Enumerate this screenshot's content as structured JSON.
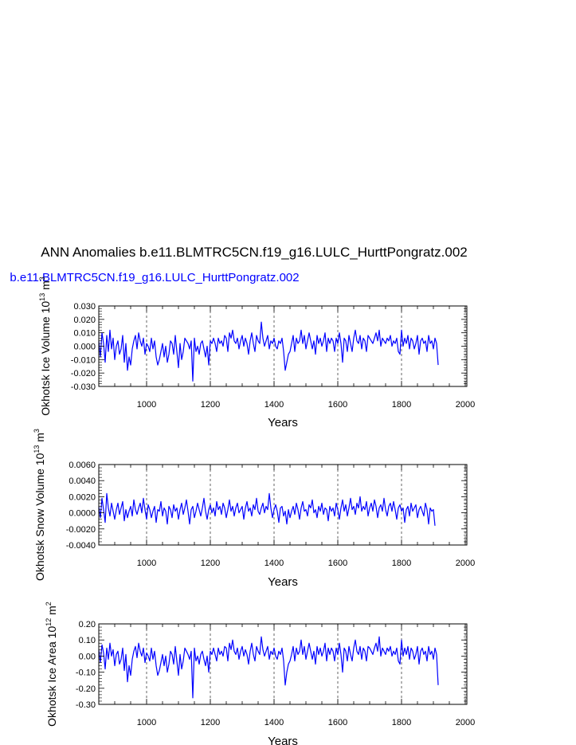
{
  "title": "ANN Anomalies b.e11.BLMTRC5CN.f19_g16.LULC_HurttPongratz.002",
  "subtitle": "b.e11.BLMTRC5CN.f19_g16.LULC_HurttPongratz.002",
  "colors": {
    "series": "#0000ff",
    "axes": "#000000",
    "subtitle": "#0000ff"
  },
  "chart_data": [
    {
      "type": "line",
      "xlabel": "Years",
      "ylabel": {
        "text": "Okhotsk Ice Volume 10",
        "exp": "13",
        "unit": " m",
        "unit_exp": "3"
      },
      "xlim": [
        850,
        2005
      ],
      "ylim": [
        -0.03,
        0.03
      ],
      "xticks": [
        1000,
        1200,
        1400,
        1600,
        1800,
        2000
      ],
      "yticks": [
        "0.030",
        "0.020",
        "0.010",
        "0.000",
        "-0.010",
        "-0.020",
        "-0.030"
      ],
      "ytick_values": [
        0.03,
        0.02,
        0.01,
        0.0,
        -0.01,
        -0.02,
        -0.03
      ],
      "vlines": [
        1000,
        1200,
        1400,
        1600,
        1800,
        2000
      ],
      "series": [
        {
          "color": "#0000ff",
          "x_start": 850,
          "x_step": 5,
          "y": [
            0.004,
            -0.008,
            0.01,
            0.002,
            -0.012,
            0.008,
            -0.004,
            0.012,
            -0.002,
            0.006,
            -0.01,
            0.0,
            0.004,
            -0.006,
            -0.002,
            0.008,
            -0.012,
            0.002,
            -0.018,
            -0.008,
            -0.014,
            -0.002,
            0.004,
            0.008,
            -0.002,
            0.01,
            0.004,
            0.0,
            0.006,
            -0.006,
            0.002,
            0.0,
            -0.004,
            0.006,
            -0.002,
            0.004,
            -0.008,
            -0.014,
            -0.01,
            -0.004,
            0.002,
            -0.008,
            0.0,
            -0.012,
            -0.006,
            0.004,
            0.002,
            -0.006,
            0.008,
            -0.004,
            -0.016,
            0.002,
            -0.01,
            -0.004,
            0.006,
            0.004,
            0.002,
            -0.002,
            0.004,
            -0.026,
            0.006,
            -0.004,
            0.0,
            -0.006,
            0.002,
            0.004,
            -0.002,
            -0.008,
            0.0,
            -0.014,
            0.004,
            0.002,
            0.006,
            0.002,
            -0.004,
            0.006,
            0.002,
            0.004,
            0.0,
            0.008,
            0.006,
            -0.004,
            0.01,
            0.006,
            0.012,
            0.004,
            0.002,
            0.006,
            -0.002,
            0.004,
            0.008,
            0.0,
            0.006,
            0.002,
            -0.006,
            0.004,
            0.01,
            0.002,
            -0.004,
            0.008,
            0.004,
            0.002,
            0.018,
            0.006,
            0.0,
            0.004,
            0.008,
            -0.002,
            0.004,
            0.002,
            0.006,
            0.0,
            -0.002,
            0.004,
            0.002,
            0.006,
            -0.004,
            -0.018,
            -0.012,
            -0.006,
            -0.004,
            0.002,
            0.008,
            -0.004,
            0.006,
            0.002,
            0.004,
            0.012,
            0.002,
            0.008,
            -0.002,
            0.004,
            0.01,
            0.004,
            -0.002,
            0.004,
            -0.006,
            0.008,
            0.002,
            0.006,
            0.0,
            0.004,
            0.01,
            -0.004,
            0.006,
            0.002,
            0.006,
            0.004,
            -0.004,
            0.006,
            0.002,
            0.01,
            0.002,
            -0.012,
            0.006,
            0.004,
            -0.004,
            0.008,
            0.002,
            -0.004,
            0.006,
            0.012,
            0.004,
            0.002,
            0.008,
            -0.002,
            0.006,
            0.004,
            -0.004,
            0.008,
            0.006,
            0.004,
            0.002,
            0.006,
            0.01,
            0.004,
            0.012,
            0.0,
            0.006,
            0.004,
            0.002,
            0.006,
            0.004,
            0.008,
            0.0,
            0.004,
            0.002,
            0.006,
            -0.004,
            -0.006,
            0.012,
            0.0,
            0.006,
            0.002,
            0.008,
            -0.002,
            0.006,
            0.004,
            -0.002,
            0.002,
            0.008,
            -0.006,
            0.004,
            0.006,
            0.002,
            0.004,
            -0.004,
            0.008,
            0.002,
            0.004,
            -0.002,
            0.006,
            0.002,
            -0.014
          ]
        }
      ]
    },
    {
      "type": "line",
      "xlabel": "Years",
      "ylabel": {
        "text": "Okhotsk Snow Volume 10",
        "exp": "13",
        "unit": " m",
        "unit_exp": "3"
      },
      "xlim": [
        850,
        2005
      ],
      "ylim": [
        -0.004,
        0.006
      ],
      "xticks": [
        1000,
        1200,
        1400,
        1600,
        1800,
        2000
      ],
      "yticks": [
        "0.0060",
        "0.0040",
        "0.0020",
        "0.0000",
        "-0.0020",
        "-0.0040"
      ],
      "ytick_values": [
        0.006,
        0.004,
        0.002,
        0.0,
        -0.002,
        -0.004
      ],
      "vlines": [
        1000,
        1200,
        1400,
        1600,
        1800,
        2000
      ],
      "series": [
        {
          "color": "#0000ff",
          "x_start": 850,
          "x_step": 5,
          "y": [
            0.0008,
            -0.0006,
            0.0018,
            0.0004,
            -0.0012,
            0.0024,
            0.0006,
            -0.0004,
            0.0012,
            0.0002,
            -0.0008,
            0.0004,
            0.0012,
            -0.0002,
            0.0006,
            0.0014,
            -0.001,
            0.0004,
            -0.0006,
            0.0002,
            0.0008,
            -0.0004,
            0.0016,
            0.0004,
            -0.0002,
            0.0006,
            0.0012,
            0.0,
            0.0018,
            0.0004,
            -0.0008,
            0.001,
            0.0004,
            -0.0006,
            0.0002,
            0.0008,
            -0.0012,
            0.0004,
            0.0002,
            0.0014,
            -0.0004,
            0.0006,
            0.0002,
            -0.0014,
            0.0008,
            0.0004,
            -0.0006,
            0.001,
            0.0002,
            0.0006,
            -0.0008,
            0.0004,
            0.0012,
            -0.0002,
            0.0006,
            0.0016,
            0.0002,
            -0.0014,
            0.0004,
            0.0008,
            -0.0006,
            0.0002,
            0.0012,
            0.0004,
            -0.0004,
            0.0006,
            0.0018,
            0.0002,
            -0.0008,
            0.0004,
            0.001,
            0.0,
            0.0006,
            -0.0004,
            0.0014,
            0.0004,
            0.0008,
            -0.0002,
            0.0012,
            0.0006,
            -0.0006,
            0.0004,
            0.0016,
            0.0002,
            0.0008,
            -0.0004,
            0.0006,
            0.0012,
            0.0,
            0.0004,
            0.0008,
            -0.0008,
            0.0006,
            0.0014,
            0.0002,
            0.0006,
            -0.0004,
            0.001,
            0.0004,
            0.0018,
            0.0002,
            -0.0002,
            0.0006,
            0.0012,
            0.0,
            0.0008,
            0.0004,
            0.0024,
            0.0006,
            -0.0006,
            0.0004,
            0.001,
            0.0002,
            -0.0012,
            0.0006,
            0.0008,
            -0.0004,
            0.0002,
            -0.0014,
            0.0004,
            -0.0006,
            0.0002,
            0.0008,
            -0.0002,
            0.0012,
            0.0004,
            -0.0008,
            0.0006,
            0.0014,
            0.0002,
            0.0004,
            -0.0004,
            0.001,
            0.0006,
            0.0016,
            0.0,
            0.0004,
            -0.0006,
            0.0008,
            0.0002,
            0.0012,
            -0.0002,
            0.0006,
            0.0004,
            -0.001,
            0.0008,
            0.0002,
            0.0006,
            -0.0004,
            0.0012,
            0.0004,
            -0.0008,
            0.0006,
            0.0016,
            0.0002,
            0.001,
            -0.0004,
            0.0006,
            0.0018,
            0.0004,
            0.0008,
            -0.0002,
            0.0012,
            0.0006,
            0.002,
            0.0002,
            0.0008,
            0.0004,
            0.0014,
            -0.0004,
            0.0006,
            0.0012,
            0.0002,
            0.0016,
            0.0008,
            -0.0006,
            0.0006,
            0.001,
            0.0002,
            0.0018,
            0.0004,
            -0.0004,
            0.0008,
            0.0012,
            0.0002,
            0.0014,
            0.0004,
            -0.0008,
            0.0006,
            0.001,
            0.0002,
            0.0006,
            -0.0012,
            0.0004,
            0.0008,
            -0.0004,
            0.0012,
            0.0002,
            0.0006,
            0.001,
            -0.0006,
            0.0004,
            0.0008,
            0.0002,
            -0.0004,
            0.0012,
            0.0004,
            -0.0014,
            0.0006,
            0.0002,
            0.0004,
            -0.0016
          ]
        }
      ]
    },
    {
      "type": "line",
      "xlabel": "Years",
      "ylabel": {
        "text": "Okhotsk Ice Area 10",
        "exp": "12",
        "unit": " m",
        "unit_exp": "2"
      },
      "xlim": [
        850,
        2005
      ],
      "ylim": [
        -0.3,
        0.2
      ],
      "xticks": [
        1000,
        1200,
        1400,
        1600,
        1800,
        2000
      ],
      "yticks": [
        "0.20",
        "0.10",
        "0.00",
        "-0.10",
        "-0.20",
        "-0.30"
      ],
      "ytick_values": [
        0.2,
        0.1,
        0.0,
        -0.1,
        -0.2,
        -0.3
      ],
      "vlines": [
        1000,
        1200,
        1400,
        1600,
        1800,
        2000
      ],
      "series": [
        {
          "color": "#0000ff",
          "x_start": 850,
          "x_step": 5,
          "y": [
            0.04,
            -0.04,
            0.07,
            0.02,
            -0.08,
            0.05,
            -0.02,
            0.08,
            0.0,
            0.04,
            -0.06,
            0.01,
            0.03,
            -0.05,
            -0.02,
            0.05,
            -0.09,
            0.01,
            -0.16,
            -0.06,
            -0.12,
            -0.02,
            0.03,
            0.06,
            -0.01,
            0.08,
            0.03,
            0.0,
            0.05,
            -0.04,
            0.02,
            0.0,
            -0.03,
            0.05,
            -0.02,
            0.03,
            -0.06,
            -0.12,
            -0.09,
            -0.04,
            0.01,
            -0.06,
            0.0,
            -0.1,
            -0.05,
            0.03,
            0.01,
            -0.05,
            0.06,
            -0.03,
            -0.12,
            0.01,
            -0.08,
            -0.03,
            0.05,
            0.03,
            0.01,
            -0.02,
            0.03,
            -0.26,
            0.05,
            -0.03,
            0.0,
            -0.05,
            0.01,
            0.03,
            -0.02,
            -0.06,
            0.0,
            -0.1,
            0.03,
            0.01,
            0.05,
            0.01,
            -0.03,
            0.05,
            0.01,
            0.03,
            0.0,
            0.06,
            0.05,
            -0.03,
            0.08,
            0.04,
            0.1,
            0.03,
            0.01,
            0.05,
            -0.02,
            0.03,
            0.06,
            0.0,
            0.04,
            0.01,
            -0.05,
            0.03,
            0.08,
            0.01,
            -0.03,
            0.06,
            0.03,
            0.01,
            0.12,
            0.04,
            0.0,
            0.03,
            0.06,
            -0.02,
            0.03,
            0.01,
            0.05,
            0.0,
            -0.02,
            0.03,
            0.01,
            0.05,
            -0.03,
            -0.18,
            -0.1,
            -0.05,
            -0.03,
            0.01,
            0.06,
            -0.03,
            0.05,
            0.01,
            0.03,
            0.1,
            0.01,
            0.06,
            -0.02,
            0.03,
            0.08,
            0.03,
            -0.02,
            0.03,
            -0.05,
            0.06,
            0.01,
            0.05,
            0.0,
            0.03,
            0.08,
            -0.03,
            0.05,
            0.01,
            0.05,
            0.03,
            -0.03,
            0.05,
            0.01,
            0.08,
            0.01,
            -0.1,
            0.05,
            0.03,
            -0.03,
            0.06,
            0.01,
            -0.03,
            0.05,
            0.1,
            0.03,
            0.01,
            0.06,
            -0.02,
            0.05,
            0.03,
            -0.03,
            0.06,
            0.05,
            0.03,
            0.01,
            0.05,
            0.08,
            0.03,
            0.12,
            0.0,
            0.05,
            0.03,
            0.01,
            0.05,
            0.03,
            0.06,
            0.0,
            0.03,
            0.01,
            0.05,
            -0.03,
            -0.05,
            0.1,
            0.0,
            0.05,
            0.01,
            0.06,
            -0.02,
            0.05,
            0.03,
            -0.02,
            0.01,
            0.06,
            -0.05,
            0.03,
            0.05,
            0.01,
            0.03,
            -0.03,
            0.06,
            0.01,
            0.03,
            -0.02,
            0.05,
            0.01,
            -0.18
          ]
        }
      ]
    }
  ]
}
